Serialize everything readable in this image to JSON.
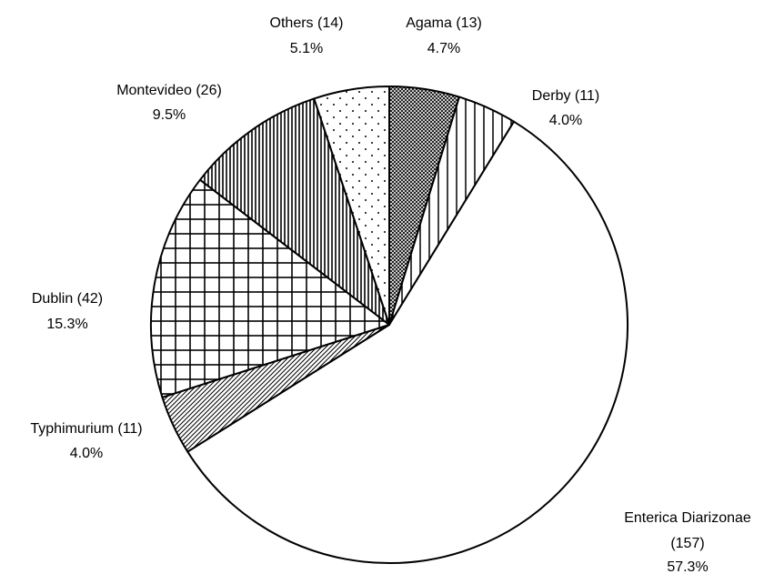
{
  "chart_data": {
    "type": "pie",
    "title": "",
    "slices": [
      {
        "name": "Agama",
        "count": "(13)",
        "percent": "4.7%",
        "value": 13,
        "pattern": "crosshatch-fine"
      },
      {
        "name": "Derby",
        "count": "(11)",
        "percent": "4.0%",
        "value": 11,
        "pattern": "vertical-lines"
      },
      {
        "name": "Enterica Diarizonae",
        "count": "(157)",
        "percent": "57.3%",
        "value": 157,
        "pattern": "none"
      },
      {
        "name": "Typhimurium",
        "count": "(11)",
        "percent": "4.0%",
        "value": 11,
        "pattern": "diagonal-lines"
      },
      {
        "name": "Dublin",
        "count": "(42)",
        "percent": "15.3%",
        "value": 42,
        "pattern": "grid"
      },
      {
        "name": "Montevideo",
        "count": "(26)",
        "percent": "9.5%",
        "value": 26,
        "pattern": "dense-vertical-lines"
      },
      {
        "name": "Others",
        "count": "(14)",
        "percent": "5.1%",
        "value": 14,
        "pattern": "dots"
      }
    ],
    "labels": {
      "agama": {
        "line1": "Agama (13)",
        "line2": "4.7%"
      },
      "derby": {
        "line1": "Derby (11)",
        "line2": "4.0%"
      },
      "enterica": {
        "line1": "Enterica Diarizonae",
        "line2": "(157)",
        "line3": "57.3%"
      },
      "typhimurium": {
        "line1": "Typhimurium (11)",
        "line2": "4.0%"
      },
      "dublin": {
        "line1": "Dublin (42)",
        "line2": "15.3%"
      },
      "montevideo": {
        "line1": "Montevideo (26)",
        "line2": "9.5%"
      },
      "others": {
        "line1": "Others (14)",
        "line2": "5.1%"
      }
    },
    "colors": {
      "fill": "#ffffff",
      "stroke": "#000000"
    }
  }
}
